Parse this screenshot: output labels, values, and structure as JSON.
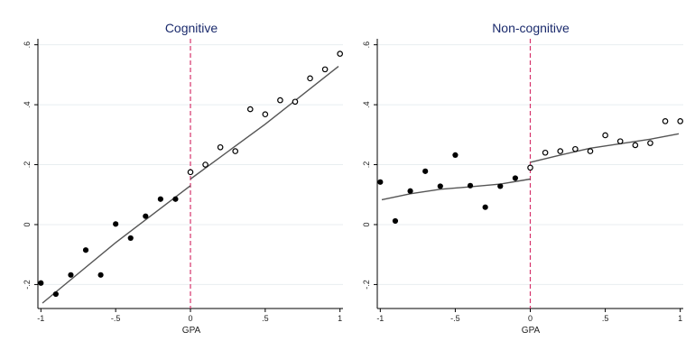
{
  "chart_data": [
    {
      "type": "scatter",
      "title": "Cognitive",
      "xlabel": "GPA",
      "ylabel": "",
      "xlim": [
        -1.02,
        1.02
      ],
      "ylim": [
        -0.28,
        0.62
      ],
      "x_ticks": [
        -1,
        -0.5,
        0,
        0.5,
        1
      ],
      "x_tick_labels": [
        "-1",
        "-.5",
        "0",
        ".5",
        "1"
      ],
      "y_ticks": [
        -0.2,
        0,
        0.2,
        0.4,
        0.6
      ],
      "y_tick_labels": [
        "-.2",
        "0",
        ".2",
        ".4",
        ".6"
      ],
      "grid": true,
      "cutoff": 0,
      "colors": {
        "points": "#000000",
        "fit": "#555555",
        "cutoff": "#d6336c"
      },
      "series": [
        {
          "marker": "filled",
          "x": [
            -1.0,
            -0.9,
            -0.8,
            -0.7,
            -0.6,
            -0.5,
            -0.4,
            -0.3,
            -0.2,
            -0.1
          ],
          "y": [
            -0.195,
            -0.232,
            -0.168,
            -0.085,
            -0.168,
            0.002,
            -0.045,
            0.028,
            0.085,
            0.085
          ]
        },
        {
          "marker": "hollow",
          "x": [
            0.0,
            0.1,
            0.2,
            0.3,
            0.4,
            0.5,
            0.6,
            0.7,
            0.8,
            0.9,
            1.0
          ],
          "y": [
            0.175,
            0.2,
            0.258,
            0.245,
            0.385,
            0.368,
            0.415,
            0.41,
            0.488,
            0.518,
            0.57
          ]
        }
      ],
      "fit_lines": [
        {
          "x": [
            -0.99,
            -0.5,
            0
          ],
          "y": [
            -0.262,
            -0.06,
            0.13
          ]
        },
        {
          "x": [
            0,
            0.5,
            0.99
          ],
          "y": [
            0.152,
            0.335,
            0.528
          ]
        }
      ]
    },
    {
      "type": "scatter",
      "title": "Non-cognitive",
      "xlabel": "GPA",
      "ylabel": "",
      "xlim": [
        -1.02,
        1.02
      ],
      "ylim": [
        -0.28,
        0.62
      ],
      "x_ticks": [
        -1,
        -0.5,
        0,
        0.5,
        1
      ],
      "x_tick_labels": [
        "-1",
        "-.5",
        "0",
        ".5",
        "1"
      ],
      "y_ticks": [
        -0.2,
        0,
        0.2,
        0.4,
        0.6
      ],
      "y_tick_labels": [
        "-.2",
        "0",
        ".2",
        ".4",
        ".6"
      ],
      "grid": true,
      "cutoff": 0,
      "colors": {
        "points": "#000000",
        "fit": "#555555",
        "cutoff": "#d6336c"
      },
      "series": [
        {
          "marker": "filled",
          "x": [
            -1.0,
            -0.9,
            -0.8,
            -0.7,
            -0.6,
            -0.5,
            -0.4,
            -0.3,
            -0.2,
            -0.1
          ],
          "y": [
            0.142,
            0.012,
            0.112,
            0.178,
            0.128,
            0.232,
            0.13,
            0.058,
            0.128,
            0.155
          ]
        },
        {
          "marker": "hollow",
          "x": [
            0.0,
            0.1,
            0.2,
            0.3,
            0.4,
            0.5,
            0.6,
            0.7,
            0.8,
            0.9,
            1.0
          ],
          "y": [
            0.19,
            0.24,
            0.245,
            0.252,
            0.245,
            0.298,
            0.278,
            0.265,
            0.272,
            0.345,
            0.345
          ]
        }
      ],
      "fit_lines": [
        {
          "x": [
            -0.99,
            -0.8,
            -0.6,
            -0.4,
            -0.2,
            0
          ],
          "y": [
            0.083,
            0.103,
            0.118,
            0.126,
            0.135,
            0.152
          ]
        },
        {
          "x": [
            0,
            0.2,
            0.4,
            0.6,
            0.8,
            0.99
          ],
          "y": [
            0.208,
            0.232,
            0.255,
            0.27,
            0.285,
            0.303
          ]
        }
      ]
    }
  ]
}
